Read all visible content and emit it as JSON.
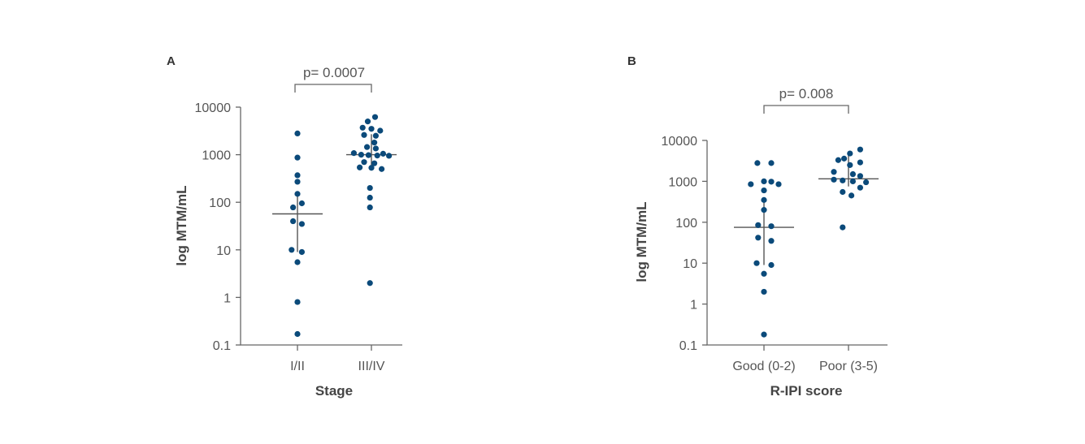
{
  "chart_data": [
    {
      "panel": "A",
      "type": "scatter",
      "xlabel": "Stage",
      "ylabel": "log MTM/mL",
      "yscale": "log",
      "ylim": [
        0.1,
        10000
      ],
      "yticks": [
        "10000",
        "1000",
        "100",
        "10",
        "1",
        "0.1"
      ],
      "categories": [
        "I/II",
        "III/IV"
      ],
      "pvalue": "p= 0.0007",
      "color": "#0b4a7a",
      "groups": [
        {
          "name": "I/II",
          "median": 57,
          "iqr": [
            9,
            170
          ],
          "points": [
            {
              "y": 2800,
              "j": 0
            },
            {
              "y": 870,
              "j": 0
            },
            {
              "y": 370,
              "j": 0
            },
            {
              "y": 270,
              "j": 0
            },
            {
              "y": 150,
              "j": 0
            },
            {
              "y": 95,
              "j": 0.6
            },
            {
              "y": 78,
              "j": -0.6
            },
            {
              "y": 40,
              "j": -0.6
            },
            {
              "y": 35,
              "j": 0.6
            },
            {
              "y": 10,
              "j": -0.8
            },
            {
              "y": 9,
              "j": 0.6
            },
            {
              "y": 5.5,
              "j": 0
            },
            {
              "y": 0.8,
              "j": 0
            },
            {
              "y": 0.17,
              "j": 0
            }
          ]
        },
        {
          "name": "III/IV",
          "median": 1000,
          "iqr": [
            600,
            2700
          ],
          "points": [
            {
              "y": 6200,
              "j": 0.5
            },
            {
              "y": 5000,
              "j": -0.5
            },
            {
              "y": 3700,
              "j": -1.2
            },
            {
              "y": 3500,
              "j": 0
            },
            {
              "y": 3200,
              "j": 1.2
            },
            {
              "y": 2600,
              "j": -1.0
            },
            {
              "y": 2500,
              "j": 0.6
            },
            {
              "y": 1800,
              "j": 0.4
            },
            {
              "y": 1450,
              "j": -0.6
            },
            {
              "y": 1350,
              "j": 0.6
            },
            {
              "y": 1080,
              "j": -2.4
            },
            {
              "y": 1050,
              "j": 1.6
            },
            {
              "y": 1000,
              "j": -1.4
            },
            {
              "y": 980,
              "j": -0.4
            },
            {
              "y": 960,
              "j": 0.8
            },
            {
              "y": 950,
              "j": 2.4
            },
            {
              "y": 700,
              "j": -1.0
            },
            {
              "y": 660,
              "j": 0.4
            },
            {
              "y": 540,
              "j": -1.6
            },
            {
              "y": 530,
              "j": 0.0
            },
            {
              "y": 500,
              "j": 1.4
            },
            {
              "y": 200,
              "j": -0.2
            },
            {
              "y": 125,
              "j": -0.2
            },
            {
              "y": 78,
              "j": -0.2
            },
            {
              "y": 2,
              "j": -0.2
            }
          ]
        }
      ]
    },
    {
      "panel": "B",
      "type": "scatter",
      "xlabel": "R-IPI score",
      "ylabel": "log MTM/mL",
      "yscale": "log",
      "ylim": [
        0.1,
        10000
      ],
      "yticks": [
        "10000",
        "1000",
        "100",
        "10",
        "1",
        "0.1"
      ],
      "categories": [
        "Good (0-2)",
        "Poor (3-5)"
      ],
      "pvalue": "p= 0.008",
      "color": "#0b4a7a",
      "groups": [
        {
          "name": "Good (0-2)",
          "median": 75,
          "iqr": [
            9,
            400
          ],
          "points": [
            {
              "y": 2800,
              "j": -0.9
            },
            {
              "y": 2800,
              "j": 1.0
            },
            {
              "y": 1000,
              "j": 0
            },
            {
              "y": 980,
              "j": 1.0
            },
            {
              "y": 850,
              "j": -1.8
            },
            {
              "y": 850,
              "j": 2.0
            },
            {
              "y": 600,
              "j": 0
            },
            {
              "y": 350,
              "j": 0
            },
            {
              "y": 200,
              "j": 0
            },
            {
              "y": 85,
              "j": -0.8
            },
            {
              "y": 80,
              "j": 1.0
            },
            {
              "y": 42,
              "j": -0.8
            },
            {
              "y": 35,
              "j": 1.0
            },
            {
              "y": 10,
              "j": -1.0
            },
            {
              "y": 9,
              "j": 1.0
            },
            {
              "y": 5.5,
              "j": 0
            },
            {
              "y": 2,
              "j": 0
            },
            {
              "y": 0.18,
              "j": 0
            }
          ]
        },
        {
          "name": "Poor (3-5)",
          "median": 1150,
          "iqr": [
            750,
            4500
          ],
          "points": [
            {
              "y": 6000,
              "j": 1.6
            },
            {
              "y": 4800,
              "j": 0.2
            },
            {
              "y": 3600,
              "j": -0.6
            },
            {
              "y": 3300,
              "j": -1.4
            },
            {
              "y": 2900,
              "j": 1.6
            },
            {
              "y": 2500,
              "j": 0.2
            },
            {
              "y": 1700,
              "j": -2.0
            },
            {
              "y": 1500,
              "j": 0.6
            },
            {
              "y": 1350,
              "j": 1.6
            },
            {
              "y": 1100,
              "j": -2.0
            },
            {
              "y": 1050,
              "j": -0.8
            },
            {
              "y": 1000,
              "j": 0.6
            },
            {
              "y": 950,
              "j": 2.4
            },
            {
              "y": 700,
              "j": 1.6
            },
            {
              "y": 550,
              "j": -0.8
            },
            {
              "y": 450,
              "j": 0.4
            },
            {
              "y": 75,
              "j": -0.8
            }
          ]
        }
      ]
    }
  ]
}
